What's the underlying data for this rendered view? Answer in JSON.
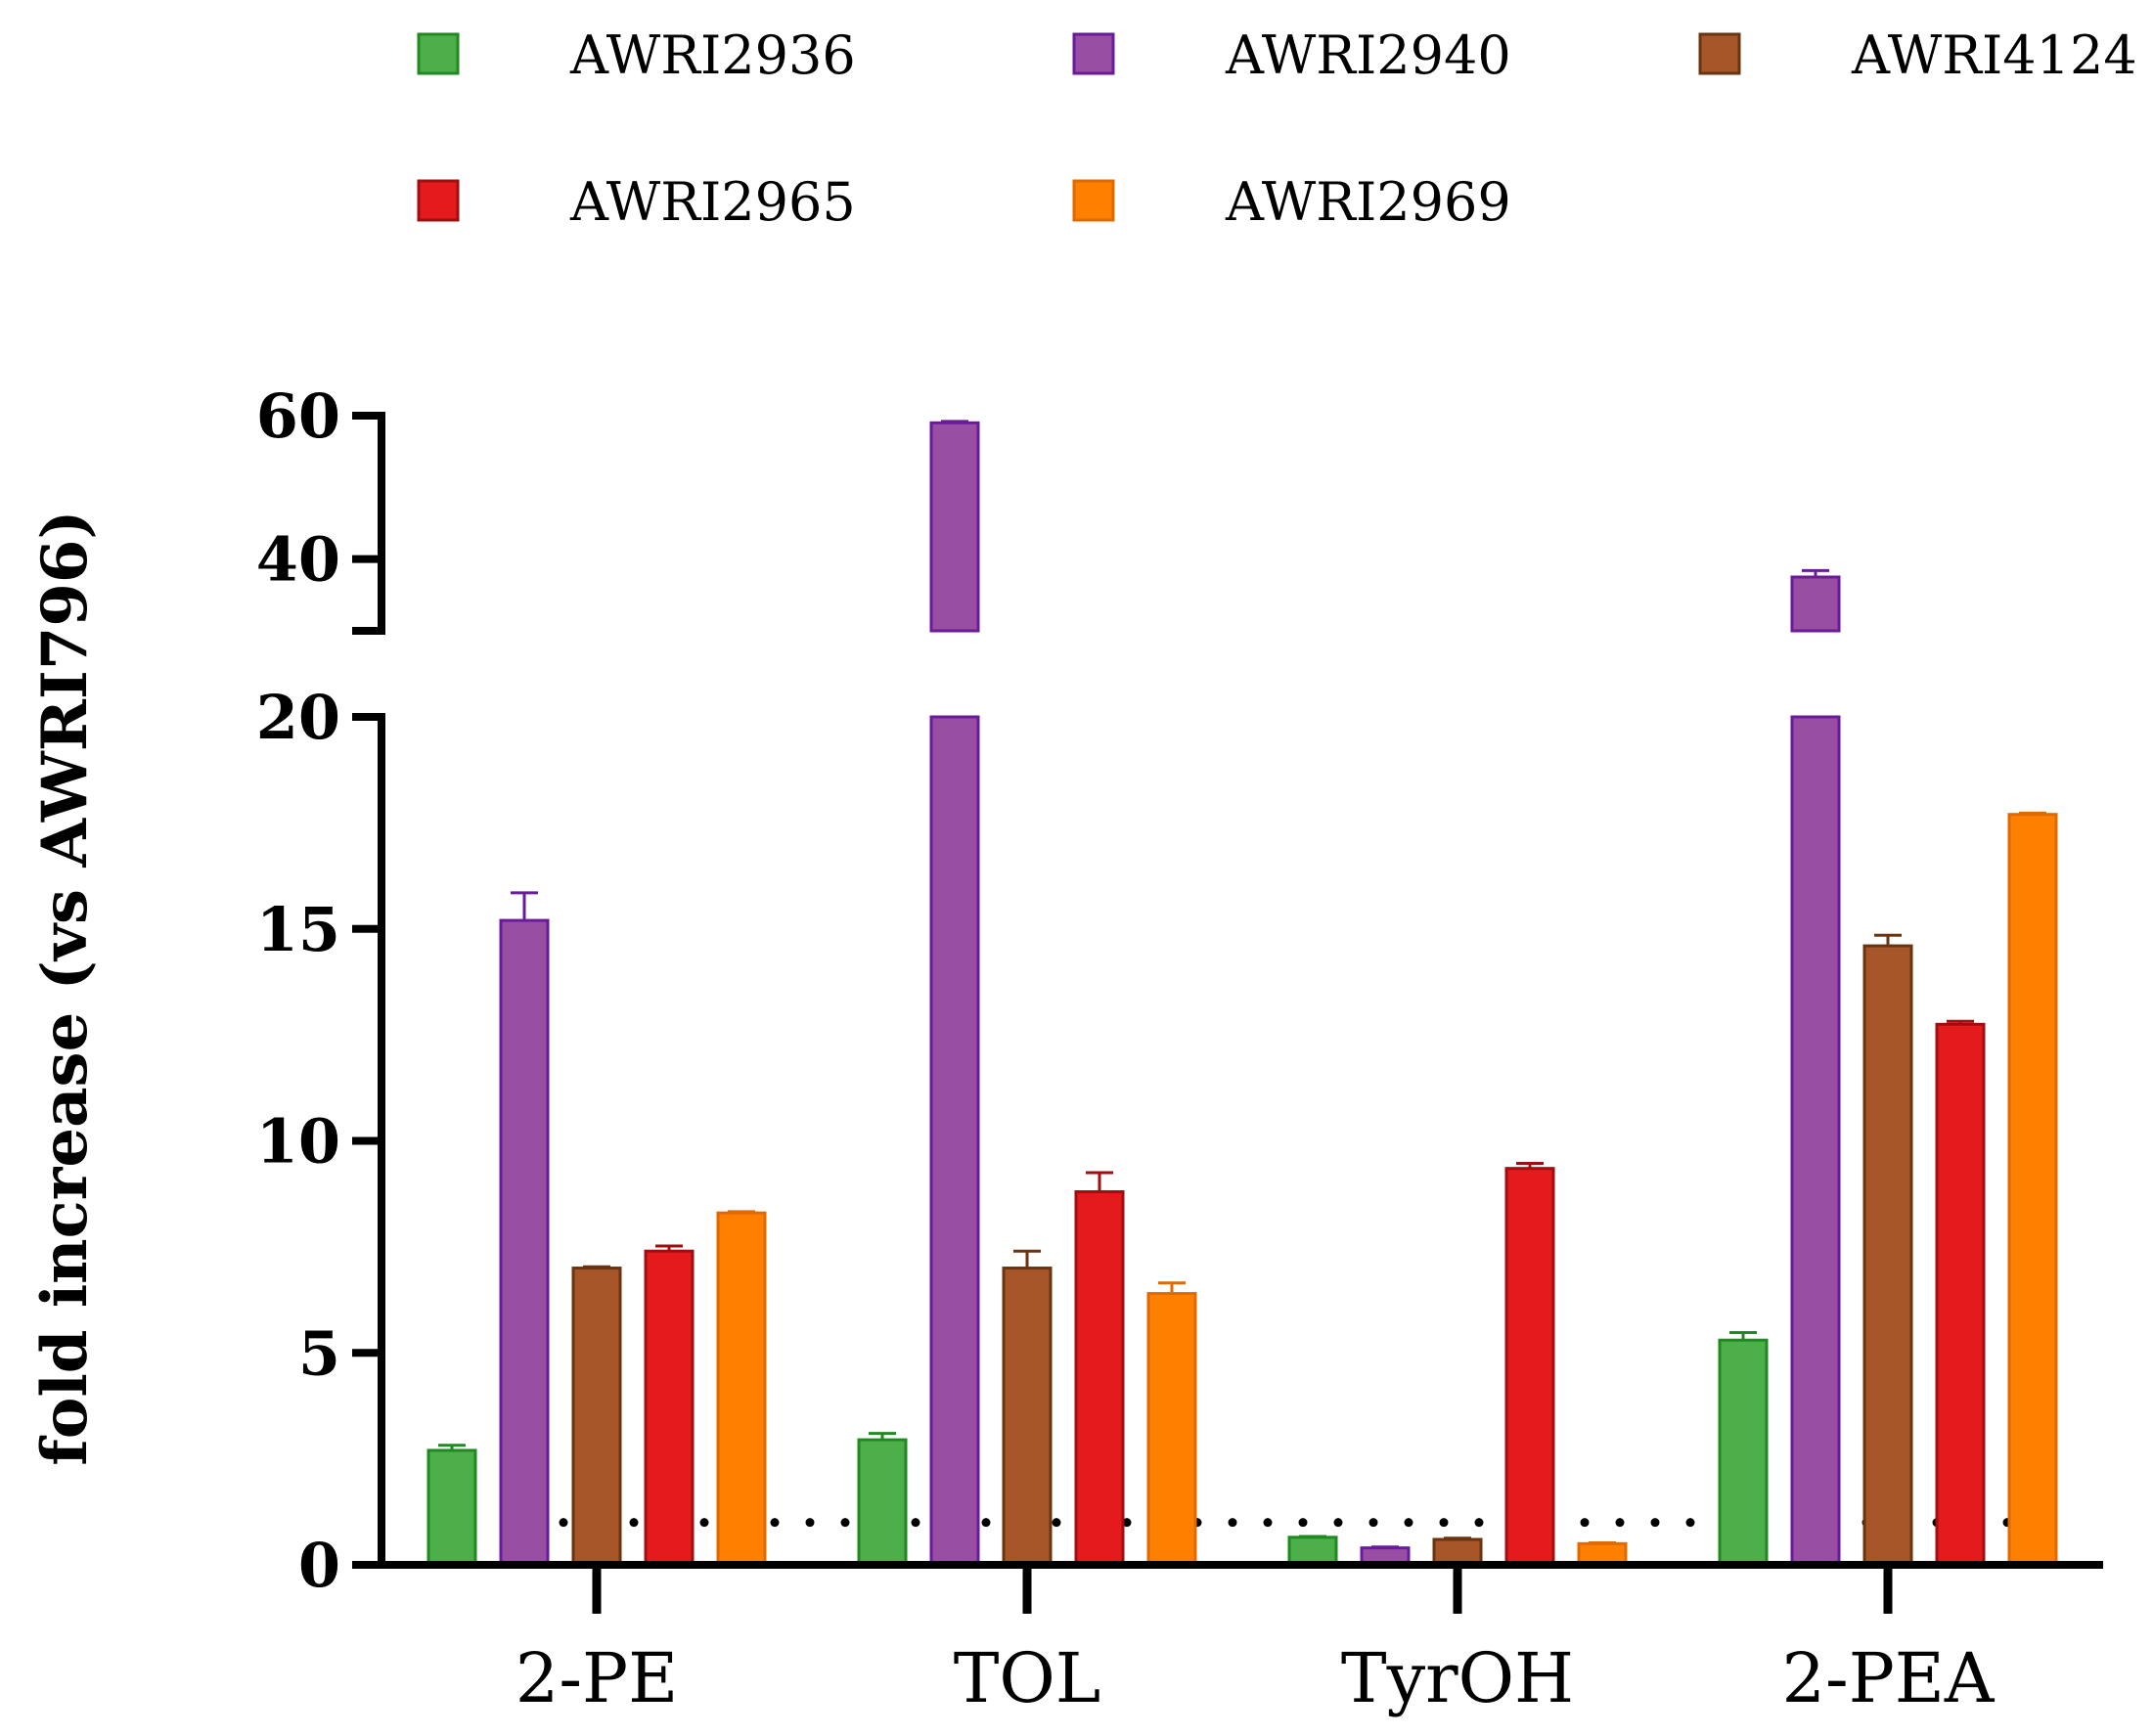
{
  "chart_data": {
    "type": "bar",
    "title": "",
    "xlabel": "",
    "ylabel": "fold increase (vs AWRI796)",
    "categories": [
      "2-PE",
      "TOL",
      "TyrOH",
      "2-PEA"
    ],
    "y_axis": {
      "segments": [
        {
          "range": [
            0,
            20
          ],
          "ticks": [
            0,
            5,
            10,
            15,
            20
          ]
        },
        {
          "range": [
            30,
            60
          ],
          "ticks": [
            40,
            60
          ]
        }
      ],
      "tick_labels": [
        "0",
        "5",
        "10",
        "15",
        "20",
        "40",
        "60"
      ],
      "axis_break": [
        20,
        30
      ]
    },
    "reference_line": {
      "value": 1,
      "style": "dotted"
    },
    "legend": {
      "position": "top",
      "columns": 3
    },
    "series": [
      {
        "name": "AWRI2936",
        "color": "#4daf4a",
        "edge": "#1f8a1f",
        "values": [
          2.7,
          2.95,
          0.65,
          5.3
        ],
        "errors": [
          0.12,
          0.15,
          0.02,
          0.18
        ]
      },
      {
        "name": "AWRI2940",
        "color": "#984ea3",
        "edge": "#6a1b9a",
        "values": [
          15.2,
          59,
          0.4,
          37.5
        ],
        "errors": [
          0.65,
          0.2,
          0.02,
          0.9
        ]
      },
      {
        "name": "AWRI4124",
        "color": "#a65628",
        "edge": "#6b3410",
        "values": [
          7.0,
          7.0,
          0.6,
          14.6
        ],
        "errors": [
          0.03,
          0.4,
          0.03,
          0.25
        ]
      },
      {
        "name": "AWRI2965",
        "color": "#e41a1c",
        "edge": "#a10e10",
        "values": [
          7.4,
          8.8,
          9.35,
          12.75
        ],
        "errors": [
          0.12,
          0.45,
          0.12,
          0.07
        ]
      },
      {
        "name": "AWRI2969",
        "color": "#ff7f00",
        "edge": "#e06a00",
        "values": [
          8.3,
          6.4,
          0.5,
          17.7
        ],
        "errors": [
          0.03,
          0.25,
          0.02,
          0.03
        ]
      }
    ]
  }
}
